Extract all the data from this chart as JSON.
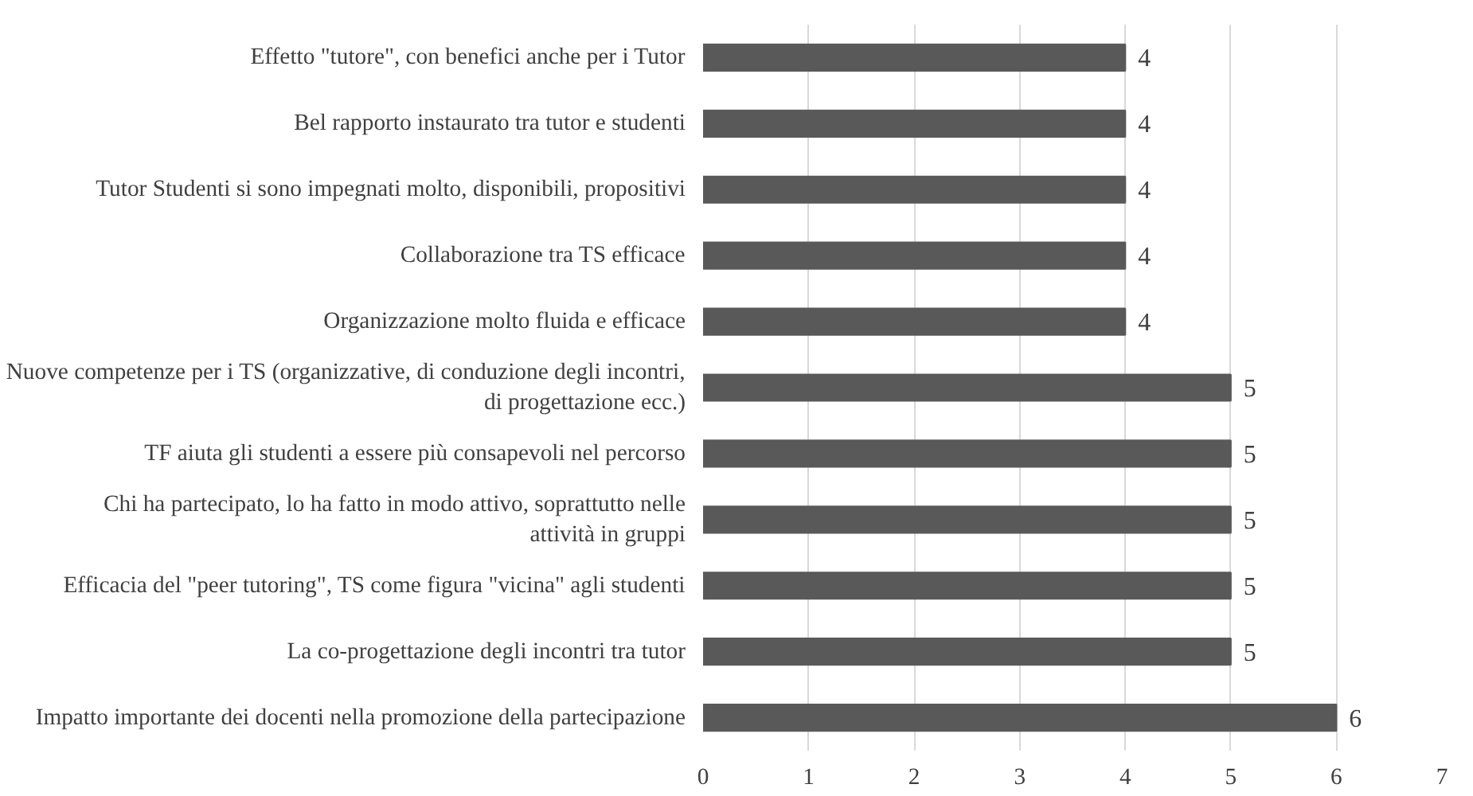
{
  "chart_data": {
    "type": "bar",
    "orientation": "horizontal",
    "categories": [
      "Effetto \"tutore\", con benefici anche per i Tutor",
      "Bel rapporto instaurato tra tutor e studenti",
      "Tutor Studenti si sono impegnati molto, disponibili, propositivi",
      "Collaborazione tra TS efficace",
      "Organizzazione molto fluida e efficace",
      "Nuove competenze per i TS (organizzative, di conduzione degli incontri, di progettazione ecc.)",
      "TF aiuta gli studenti a essere più consapevoli nel percorso",
      "Chi ha partecipato, lo ha fatto in modo attivo, soprattutto nelle attività in gruppi",
      "Efficacia del \"peer tutoring\", TS come figura \"vicina\" agli studenti",
      "La co-progettazione degli incontri tra tutor",
      "Impatto importante dei docenti nella promozione della partecipazione"
    ],
    "values": [
      4,
      4,
      4,
      4,
      4,
      5,
      5,
      5,
      5,
      5,
      6
    ],
    "color": "#595959",
    "xlim": [
      0,
      7
    ],
    "xticks": [
      0,
      1,
      2,
      3,
      4,
      5,
      6,
      7
    ],
    "grid": "x",
    "data_labels": true
  }
}
